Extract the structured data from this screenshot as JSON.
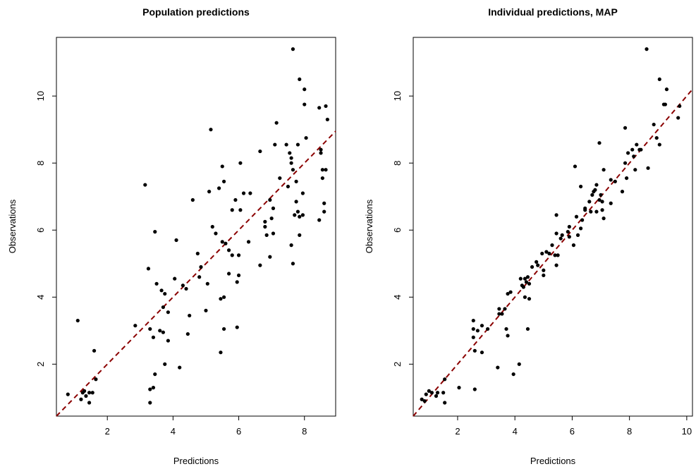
{
  "chart_data": [
    {
      "type": "scatter",
      "title": "Population predictions",
      "xlabel": "Predictions",
      "ylabel": "Observations",
      "xlim": [
        0.45,
        8.95
      ],
      "ylim": [
        0.45,
        11.75
      ],
      "xticks": [
        2,
        4,
        6,
        8
      ],
      "yticks": [
        2,
        4,
        6,
        8,
        10
      ],
      "grid": false,
      "point_color": "#000000",
      "reference_line": {
        "style": "dashed",
        "color": "#8b0000",
        "from": [
          0.45,
          0.45
        ],
        "to": [
          8.95,
          8.95
        ]
      },
      "points": [
        [
          0.8,
          1.1
        ],
        [
          1.1,
          3.3
        ],
        [
          1.2,
          0.95
        ],
        [
          1.25,
          1.15
        ],
        [
          1.3,
          1.2
        ],
        [
          1.35,
          1.05
        ],
        [
          1.45,
          0.85
        ],
        [
          1.45,
          1.15
        ],
        [
          1.55,
          1.15
        ],
        [
          1.6,
          2.4
        ],
        [
          1.65,
          1.55
        ],
        [
          2.85,
          3.15
        ],
        [
          3.15,
          7.35
        ],
        [
          3.25,
          4.85
        ],
        [
          3.3,
          3.05
        ],
        [
          3.3,
          0.85
        ],
        [
          3.3,
          1.25
        ],
        [
          3.4,
          2.8
        ],
        [
          3.4,
          1.3
        ],
        [
          3.45,
          1.7
        ],
        [
          3.45,
          5.95
        ],
        [
          3.5,
          4.4
        ],
        [
          3.6,
          3.0
        ],
        [
          3.65,
          4.2
        ],
        [
          3.7,
          2.95
        ],
        [
          3.75,
          4.1
        ],
        [
          3.75,
          2.0
        ],
        [
          3.85,
          2.7
        ],
        [
          3.85,
          3.55
        ],
        [
          3.7,
          3.7
        ],
        [
          4.05,
          4.55
        ],
        [
          4.1,
          5.7
        ],
        [
          4.2,
          1.9
        ],
        [
          4.3,
          4.35
        ],
        [
          4.4,
          4.25
        ],
        [
          4.45,
          2.9
        ],
        [
          4.5,
          3.45
        ],
        [
          4.6,
          6.9
        ],
        [
          4.75,
          5.3
        ],
        [
          4.8,
          4.6
        ],
        [
          4.85,
          4.9
        ],
        [
          5.0,
          3.6
        ],
        [
          5.05,
          4.4
        ],
        [
          5.1,
          7.15
        ],
        [
          5.15,
          9.0
        ],
        [
          5.2,
          6.1
        ],
        [
          5.3,
          5.9
        ],
        [
          5.4,
          7.25
        ],
        [
          5.45,
          2.35
        ],
        [
          5.45,
          3.95
        ],
        [
          5.5,
          5.65
        ],
        [
          5.5,
          7.9
        ],
        [
          5.55,
          3.05
        ],
        [
          5.55,
          7.45
        ],
        [
          5.6,
          5.6
        ],
        [
          5.55,
          4.0
        ],
        [
          5.7,
          4.7
        ],
        [
          5.7,
          5.4
        ],
        [
          5.8,
          5.25
        ],
        [
          5.8,
          6.6
        ],
        [
          5.9,
          6.9
        ],
        [
          5.95,
          3.1
        ],
        [
          5.95,
          4.45
        ],
        [
          6.0,
          5.25
        ],
        [
          6.0,
          4.65
        ],
        [
          6.05,
          6.6
        ],
        [
          6.05,
          8.0
        ],
        [
          6.15,
          7.1
        ],
        [
          6.3,
          5.65
        ],
        [
          6.35,
          7.1
        ],
        [
          6.65,
          4.95
        ],
        [
          6.65,
          8.35
        ],
        [
          6.8,
          6.1
        ],
        [
          6.8,
          6.25
        ],
        [
          6.85,
          5.85
        ],
        [
          6.95,
          6.9
        ],
        [
          6.95,
          5.2
        ],
        [
          7.0,
          6.35
        ],
        [
          7.05,
          5.9
        ],
        [
          7.05,
          6.65
        ],
        [
          7.1,
          8.55
        ],
        [
          7.15,
          9.2
        ],
        [
          7.25,
          7.55
        ],
        [
          7.45,
          8.55
        ],
        [
          7.5,
          7.3
        ],
        [
          7.55,
          8.3
        ],
        [
          7.6,
          5.55
        ],
        [
          7.6,
          8.0
        ],
        [
          7.6,
          8.15
        ],
        [
          7.65,
          11.4
        ],
        [
          7.65,
          5.0
        ],
        [
          7.65,
          7.8
        ],
        [
          7.7,
          6.45
        ],
        [
          7.75,
          7.45
        ],
        [
          7.75,
          6.85
        ],
        [
          7.8,
          8.55
        ],
        [
          7.8,
          6.55
        ],
        [
          7.85,
          6.4
        ],
        [
          7.85,
          10.5
        ],
        [
          7.85,
          5.85
        ],
        [
          7.95,
          7.1
        ],
        [
          7.95,
          6.45
        ],
        [
          8.0,
          9.75
        ],
        [
          8.0,
          10.2
        ],
        [
          8.05,
          8.75
        ],
        [
          8.45,
          9.65
        ],
        [
          8.45,
          6.3
        ],
        [
          8.5,
          8.3
        ],
        [
          8.5,
          8.4
        ],
        [
          8.55,
          7.55
        ],
        [
          8.55,
          7.8
        ],
        [
          8.6,
          6.55
        ],
        [
          8.6,
          6.8
        ],
        [
          8.65,
          9.7
        ],
        [
          8.65,
          7.8
        ],
        [
          8.7,
          9.3
        ]
      ]
    },
    {
      "type": "scatter",
      "title": "Individual predictions, MAP",
      "xlabel": "Predictions",
      "ylabel": "Observations",
      "xlim": [
        0.45,
        10.2
      ],
      "ylim": [
        0.45,
        11.75
      ],
      "xticks": [
        2,
        4,
        6,
        8,
        10
      ],
      "yticks": [
        2,
        4,
        6,
        8,
        10
      ],
      "grid": false,
      "point_color": "#000000",
      "reference_line": {
        "style": "dashed",
        "color": "#8b0000",
        "from": [
          0.45,
          0.45
        ],
        "to": [
          10.2,
          10.2
        ]
      },
      "points": [
        [
          0.75,
          0.95
        ],
        [
          0.85,
          0.9
        ],
        [
          0.9,
          1.1
        ],
        [
          1.0,
          1.2
        ],
        [
          1.1,
          1.15
        ],
        [
          1.25,
          1.05
        ],
        [
          1.3,
          1.15
        ],
        [
          1.5,
          1.15
        ],
        [
          1.55,
          1.55
        ],
        [
          1.55,
          0.85
        ],
        [
          2.05,
          1.3
        ],
        [
          2.55,
          3.3
        ],
        [
          2.55,
          3.05
        ],
        [
          2.55,
          2.8
        ],
        [
          2.6,
          2.4
        ],
        [
          2.6,
          1.25
        ],
        [
          2.7,
          3.0
        ],
        [
          2.85,
          3.15
        ],
        [
          2.85,
          2.35
        ],
        [
          3.05,
          3.05
        ],
        [
          3.4,
          1.9
        ],
        [
          3.45,
          3.65
        ],
        [
          3.45,
          3.5
        ],
        [
          3.55,
          3.5
        ],
        [
          3.65,
          3.65
        ],
        [
          3.7,
          3.05
        ],
        [
          3.75,
          4.1
        ],
        [
          3.75,
          2.85
        ],
        [
          3.85,
          4.15
        ],
        [
          3.95,
          1.7
        ],
        [
          4.15,
          2.0
        ],
        [
          4.2,
          4.55
        ],
        [
          4.25,
          4.35
        ],
        [
          4.3,
          4.3
        ],
        [
          4.35,
          4.55
        ],
        [
          4.35,
          4.0
        ],
        [
          4.4,
          4.45
        ],
        [
          4.45,
          3.05
        ],
        [
          4.45,
          4.6
        ],
        [
          4.5,
          3.95
        ],
        [
          4.5,
          4.4
        ],
        [
          4.6,
          4.9
        ],
        [
          4.75,
          5.05
        ],
        [
          4.8,
          4.95
        ],
        [
          4.95,
          5.3
        ],
        [
          5.0,
          4.8
        ],
        [
          5.0,
          4.65
        ],
        [
          5.1,
          5.35
        ],
        [
          5.2,
          5.3
        ],
        [
          5.3,
          5.55
        ],
        [
          5.4,
          5.25
        ],
        [
          5.45,
          4.95
        ],
        [
          5.45,
          5.9
        ],
        [
          5.45,
          6.45
        ],
        [
          5.5,
          5.25
        ],
        [
          5.6,
          5.75
        ],
        [
          5.65,
          5.85
        ],
        [
          5.85,
          5.95
        ],
        [
          5.9,
          6.1
        ],
        [
          5.9,
          5.8
        ],
        [
          6.05,
          5.55
        ],
        [
          6.1,
          7.9
        ],
        [
          6.15,
          6.4
        ],
        [
          6.2,
          5.85
        ],
        [
          6.3,
          7.3
        ],
        [
          6.3,
          6.05
        ],
        [
          6.35,
          6.3
        ],
        [
          6.45,
          6.65
        ],
        [
          6.45,
          6.6
        ],
        [
          6.6,
          6.85
        ],
        [
          6.65,
          6.55
        ],
        [
          6.7,
          7.05
        ],
        [
          6.75,
          7.15
        ],
        [
          6.8,
          7.2
        ],
        [
          6.85,
          7.35
        ],
        [
          6.85,
          6.55
        ],
        [
          6.95,
          8.6
        ],
        [
          6.95,
          6.9
        ],
        [
          7.0,
          7.05
        ],
        [
          7.05,
          6.85
        ],
        [
          7.05,
          6.6
        ],
        [
          7.1,
          6.35
        ],
        [
          7.1,
          7.8
        ],
        [
          7.35,
          7.5
        ],
        [
          7.35,
          6.8
        ],
        [
          7.5,
          7.45
        ],
        [
          7.75,
          7.15
        ],
        [
          7.85,
          8.0
        ],
        [
          7.85,
          9.05
        ],
        [
          7.9,
          7.55
        ],
        [
          7.95,
          8.3
        ],
        [
          8.1,
          8.4
        ],
        [
          8.15,
          8.2
        ],
        [
          8.2,
          7.8
        ],
        [
          8.25,
          8.55
        ],
        [
          8.35,
          8.4
        ],
        [
          8.4,
          8.4
        ],
        [
          8.6,
          11.4
        ],
        [
          8.65,
          7.85
        ],
        [
          8.85,
          9.15
        ],
        [
          8.95,
          8.75
        ],
        [
          9.05,
          10.5
        ],
        [
          9.05,
          8.55
        ],
        [
          9.2,
          9.75
        ],
        [
          9.25,
          9.75
        ],
        [
          9.3,
          10.2
        ],
        [
          9.7,
          9.35
        ],
        [
          9.75,
          9.7
        ]
      ]
    }
  ]
}
